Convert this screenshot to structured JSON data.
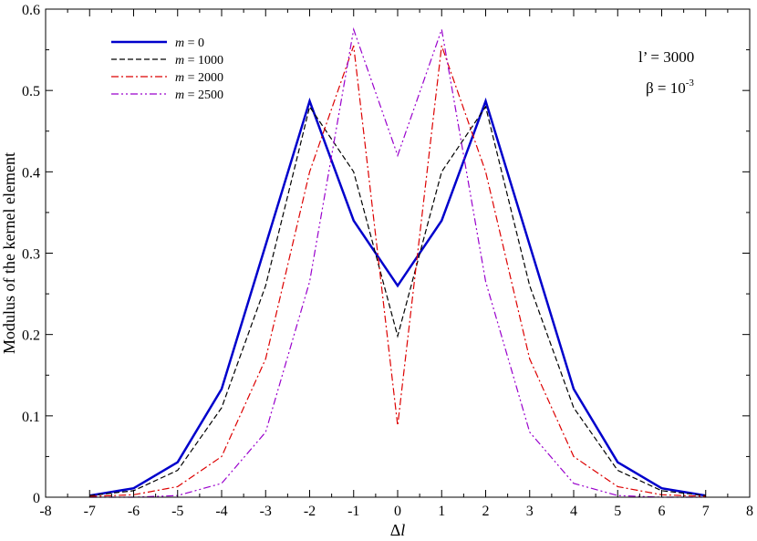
{
  "chart_data": {
    "type": "line",
    "title": "",
    "xlabel": "Δl",
    "ylabel": "Modulus of the kernel element",
    "xlim": [
      -8,
      8
    ],
    "ylim": [
      0,
      0.6
    ],
    "xticks": [
      "-8",
      "-7",
      "-6",
      "-5",
      "-4",
      "-3",
      "-2",
      "-1",
      "0",
      "1",
      "2",
      "3",
      "4",
      "5",
      "6",
      "7",
      "8"
    ],
    "yticks": [
      "0",
      "0.1",
      "0.2",
      "0.3",
      "0.4",
      "0.5",
      "0.6"
    ],
    "grid": false,
    "legend_position": "top-left",
    "annotations": {
      "l_prime": {
        "label": "l’ = 3000"
      },
      "beta": {
        "base": "β = 10",
        "exponent": "-3"
      }
    },
    "x": [
      -7,
      -6,
      -5,
      -4,
      -3,
      -2,
      -1,
      0,
      1,
      2,
      3,
      4,
      5,
      6,
      7
    ],
    "series": [
      {
        "name": "m = 0",
        "color": "#0000cc",
        "style": "solid",
        "values": [
          0.002,
          0.011,
          0.043,
          0.133,
          0.31,
          0.487,
          0.34,
          0.26,
          0.34,
          0.487,
          0.31,
          0.133,
          0.043,
          0.011,
          0.002
        ]
      },
      {
        "name": "m = 1000",
        "color": "#000000",
        "style": "dashed",
        "values": [
          0.002,
          0.008,
          0.033,
          0.11,
          0.26,
          0.48,
          0.4,
          0.198,
          0.4,
          0.48,
          0.26,
          0.11,
          0.033,
          0.008,
          0.002
        ]
      },
      {
        "name": "m = 2000",
        "color": "#dd0000",
        "style": "dashdot",
        "values": [
          0.001,
          0.003,
          0.013,
          0.05,
          0.17,
          0.4,
          0.555,
          0.088,
          0.555,
          0.4,
          0.17,
          0.05,
          0.013,
          0.003,
          0.001
        ]
      },
      {
        "name": "m = 2500",
        "color": "#9900cc",
        "style": "dashdotdot",
        "values": [
          0.0,
          0.0,
          0.002,
          0.017,
          0.08,
          0.265,
          0.575,
          0.42,
          0.575,
          0.265,
          0.08,
          0.017,
          0.002,
          0.0,
          0.0
        ]
      }
    ]
  }
}
